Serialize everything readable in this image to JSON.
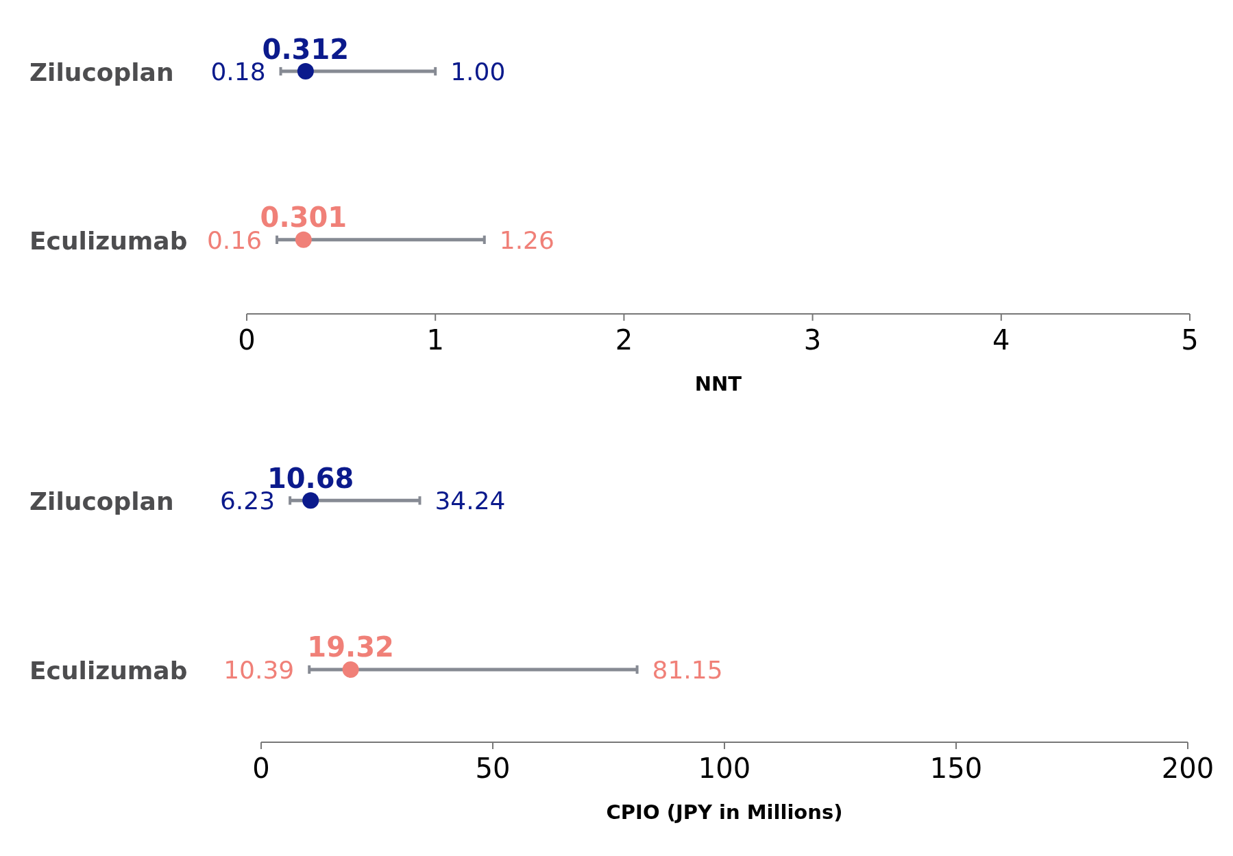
{
  "chart_data": [
    {
      "type": "scatter",
      "orientation": "horizontal",
      "categories": [
        "Zilucoplan",
        "Eculizumab"
      ],
      "values": [
        0.312,
        0.301
      ],
      "colors": [
        "#0b1a8c",
        "#f08078"
      ],
      "errors": [
        [
          0.18,
          1.0
        ],
        [
          0.16,
          1.26
        ]
      ],
      "data_labels": true,
      "xlim": [
        0,
        5
      ],
      "xticks": [
        0,
        1,
        2,
        3,
        4,
        5
      ],
      "xlabel": "NNT",
      "marker": "circle",
      "grid": false,
      "annotations": [
        "0.18",
        "1.00",
        "0.16",
        "1.26"
      ]
    },
    {
      "type": "scatter",
      "orientation": "horizontal",
      "categories": [
        "Zilucoplan",
        "Eculizumab"
      ],
      "values": [
        10.68,
        19.32
      ],
      "colors": [
        "#0b1a8c",
        "#f08078"
      ],
      "errors": [
        [
          6.23,
          34.24
        ],
        [
          10.39,
          81.15
        ]
      ],
      "data_labels": true,
      "xlim": [
        0,
        200
      ],
      "xticks": [
        0,
        50,
        100,
        150,
        200
      ],
      "xlabel": "CPIO (JPY in Millions)",
      "marker": "circle",
      "grid": false,
      "annotations": [
        "6.23",
        "34.24",
        "10.39",
        "81.15"
      ]
    }
  ]
}
